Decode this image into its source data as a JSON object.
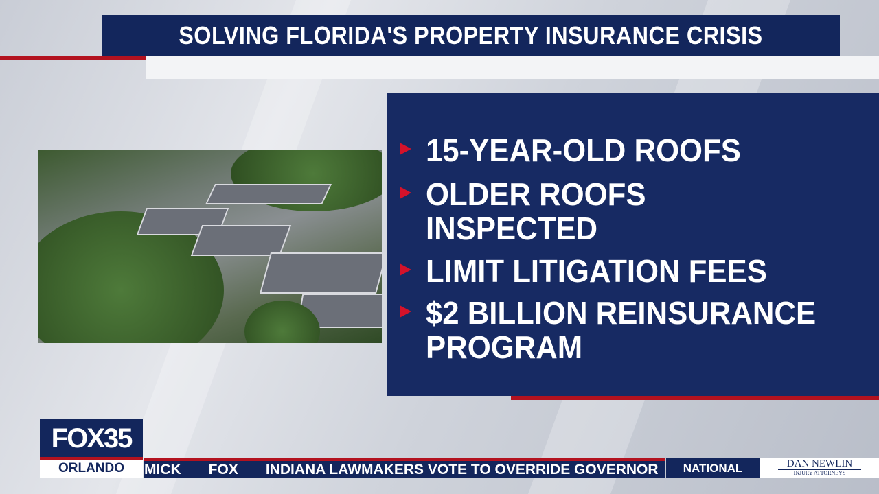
{
  "headline": "SOLVING FLORIDA'S PROPERTY INSURANCE CRISIS",
  "bullets": [
    {
      "lines": [
        "15-YEAR-OLD ROOFS"
      ]
    },
    {
      "lines": [
        "OLDER ROOFS",
        "INSPECTED"
      ]
    },
    {
      "lines": [
        "LIMIT LITIGATION FEES"
      ]
    },
    {
      "lines": [
        "$2 BILLION REINSURANCE",
        "PROGRAM"
      ]
    }
  ],
  "station": {
    "logo": "FOX35",
    "city": "ORLANDO"
  },
  "ticker": {
    "prev": "MICK",
    "brand": "FOX",
    "text": "INDIANA LAWMAKERS VOTE TO OVERRIDE GOVERNOR"
  },
  "category": "NATIONAL",
  "sponsor": {
    "name": "DAN NEWLIN",
    "sub": "INJURY ATTORNEYS"
  },
  "colors": {
    "navy": "#13265c",
    "red": "#b3121f",
    "bullet": "#d4122a"
  }
}
